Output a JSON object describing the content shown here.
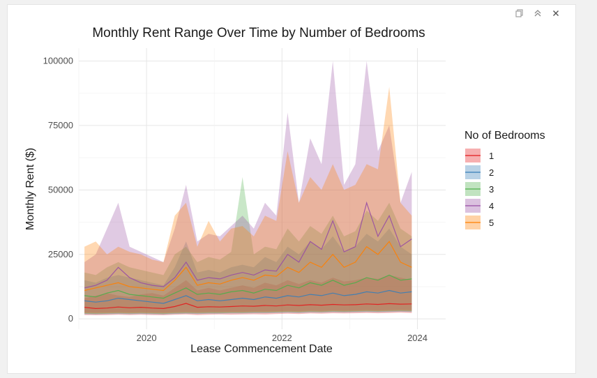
{
  "toolbar": {
    "icons": [
      "copy-icon",
      "collapse-icon",
      "close-icon"
    ]
  },
  "chart_data": {
    "type": "area",
    "title": "Monthly Rent Range Over Time by Number of Bedrooms",
    "xlabel": "Lease Commencement Date",
    "ylabel": "Monthly Rent ($)",
    "x_ticks": [
      "2020",
      "2022",
      "2024"
    ],
    "y_ticks": [
      "0",
      "25000",
      "50000",
      "75000",
      "100000"
    ],
    "ylim": [
      -4000,
      105000
    ],
    "xlim": [
      "2019-01",
      "2024-06"
    ],
    "grid": true,
    "legend": {
      "title": "No of Bedrooms",
      "position": "right"
    },
    "x": [
      "2019-02",
      "2019-04",
      "2019-06",
      "2019-08",
      "2019-10",
      "2019-12",
      "2020-02",
      "2020-04",
      "2020-06",
      "2020-08",
      "2020-10",
      "2020-12",
      "2021-02",
      "2021-04",
      "2021-06",
      "2021-08",
      "2021-10",
      "2021-12",
      "2022-02",
      "2022-04",
      "2022-06",
      "2022-08",
      "2022-10",
      "2022-12",
      "2023-02",
      "2023-04",
      "2023-06",
      "2023-08",
      "2023-10",
      "2023-12"
    ],
    "series": [
      {
        "name": "1",
        "color": "#e41a1c",
        "min": [
          1500,
          1400,
          1500,
          1600,
          1500,
          1600,
          1500,
          1400,
          1600,
          1700,
          1500,
          1600,
          1700,
          1600,
          1700,
          1800,
          1700,
          1900,
          2000,
          1900,
          2100,
          2000,
          2200,
          2100,
          2200,
          2300,
          2200,
          2300,
          2400,
          2300
        ],
        "median": [
          4500,
          4000,
          4200,
          4600,
          4300,
          4500,
          4200,
          4000,
          4800,
          6000,
          4500,
          4700,
          4600,
          4800,
          5000,
          4900,
          5200,
          5000,
          5400,
          5200,
          5500,
          5300,
          5600,
          5400,
          5500,
          5800,
          5600,
          5900,
          5700,
          5800
        ],
        "max": [
          8000,
          9000,
          10000,
          9000,
          8500,
          9500,
          10000,
          9000,
          12000,
          15000,
          11000,
          12000,
          11000,
          12000,
          13000,
          12000,
          14000,
          13000,
          15000,
          13500,
          15000,
          14000,
          16000,
          14500,
          15000,
          16000,
          15500,
          17000,
          16000,
          15000
        ]
      },
      {
        "name": "2",
        "color": "#377eb8",
        "min": [
          1800,
          1700,
          1800,
          1900,
          1800,
          1900,
          1800,
          1700,
          1900,
          2000,
          1900,
          2000,
          2000,
          2100,
          2100,
          2200,
          2200,
          2300,
          2400,
          2300,
          2500,
          2400,
          2600,
          2500,
          2600,
          2700,
          2600,
          2700,
          2800,
          2700
        ],
        "median": [
          7000,
          6500,
          7000,
          8000,
          7500,
          7000,
          6500,
          6000,
          7500,
          9000,
          7000,
          7500,
          7000,
          7500,
          8000,
          7500,
          8500,
          8000,
          9000,
          8500,
          9500,
          9000,
          10000,
          9000,
          9500,
          10500,
          10000,
          11000,
          10000,
          10500
        ],
        "max": [
          15000,
          14000,
          16000,
          17000,
          16000,
          15000,
          14000,
          13000,
          20000,
          30000,
          18000,
          19000,
          18000,
          20000,
          21000,
          20000,
          24000,
          22000,
          28000,
          25000,
          30000,
          27000,
          32000,
          26000,
          28000,
          33000,
          30000,
          35000,
          28000,
          25000
        ]
      },
      {
        "name": "3",
        "color": "#4daf4a",
        "min": [
          2000,
          1900,
          2000,
          2100,
          2000,
          2100,
          2000,
          1900,
          2100,
          2200,
          2100,
          2200,
          2200,
          2300,
          2300,
          2400,
          2400,
          2500,
          2600,
          2500,
          2700,
          2600,
          2800,
          2700,
          2800,
          2900,
          2800,
          2900,
          3000,
          2900
        ],
        "median": [
          9000,
          8500,
          10000,
          11000,
          9500,
          9000,
          8500,
          8000,
          10000,
          12000,
          9500,
          10000,
          9500,
          10500,
          11000,
          10000,
          11500,
          11000,
          13000,
          12000,
          14000,
          13000,
          15000,
          13000,
          14000,
          16000,
          15000,
          17000,
          15000,
          15500
        ],
        "max": [
          18000,
          17000,
          20000,
          22000,
          20000,
          19000,
          18000,
          17000,
          25000,
          28000,
          22000,
          24000,
          23000,
          26000,
          55000,
          25000,
          28000,
          27000,
          35000,
          30000,
          36000,
          33000,
          40000,
          32000,
          34000,
          42000,
          38000,
          45000,
          35000,
          32000
        ]
      },
      {
        "name": "4",
        "color": "#984ea3",
        "min": [
          2500,
          2400,
          2500,
          2600,
          2500,
          2600,
          2500,
          2400,
          2600,
          2700,
          2600,
          2700,
          2700,
          2800,
          2800,
          2900,
          2900,
          3000,
          3100,
          3000,
          3200,
          3100,
          3300,
          3200,
          3300,
          3400,
          3300,
          3400,
          3500,
          3400
        ],
        "median": [
          12000,
          13000,
          15000,
          20000,
          16000,
          14000,
          13000,
          12500,
          16000,
          22000,
          15000,
          16000,
          15500,
          17000,
          18000,
          17000,
          19000,
          18500,
          25000,
          22000,
          30000,
          27000,
          38000,
          26000,
          28000,
          45000,
          32000,
          40000,
          28000,
          31000
        ],
        "max": [
          22000,
          25000,
          35000,
          45000,
          28000,
          26000,
          24000,
          22000,
          35000,
          52000,
          30000,
          33000,
          32000,
          36000,
          40000,
          35000,
          45000,
          40000,
          80000,
          45000,
          70000,
          60000,
          100000,
          52000,
          60000,
          100000,
          65000,
          75000,
          45000,
          57000
        ]
      },
      {
        "name": "5",
        "color": "#ff7f00",
        "min": [
          2200,
          2100,
          2200,
          2300,
          2200,
          2300,
          2200,
          2100,
          2300,
          2400,
          2300,
          2400,
          2400,
          2500,
          2500,
          2600,
          2600,
          2700,
          2800,
          2700,
          2900,
          2800,
          3000,
          2900,
          3000,
          3100,
          3000,
          3100,
          3200,
          3100
        ],
        "median": [
          11000,
          12000,
          13000,
          14000,
          12500,
          12000,
          11500,
          11000,
          15000,
          20000,
          13000,
          14000,
          13500,
          15000,
          16000,
          15000,
          17000,
          16500,
          20000,
          18000,
          22000,
          20000,
          25000,
          20000,
          22000,
          28000,
          25000,
          30000,
          22000,
          20000
        ],
        "max": [
          28000,
          30000,
          25000,
          28000,
          26000,
          25000,
          23000,
          22000,
          40000,
          45000,
          28000,
          38000,
          30000,
          35000,
          36000,
          32000,
          40000,
          38000,
          65000,
          45000,
          55000,
          50000,
          60000,
          50000,
          52000,
          60000,
          58000,
          90000,
          45000,
          40000
        ]
      }
    ]
  }
}
